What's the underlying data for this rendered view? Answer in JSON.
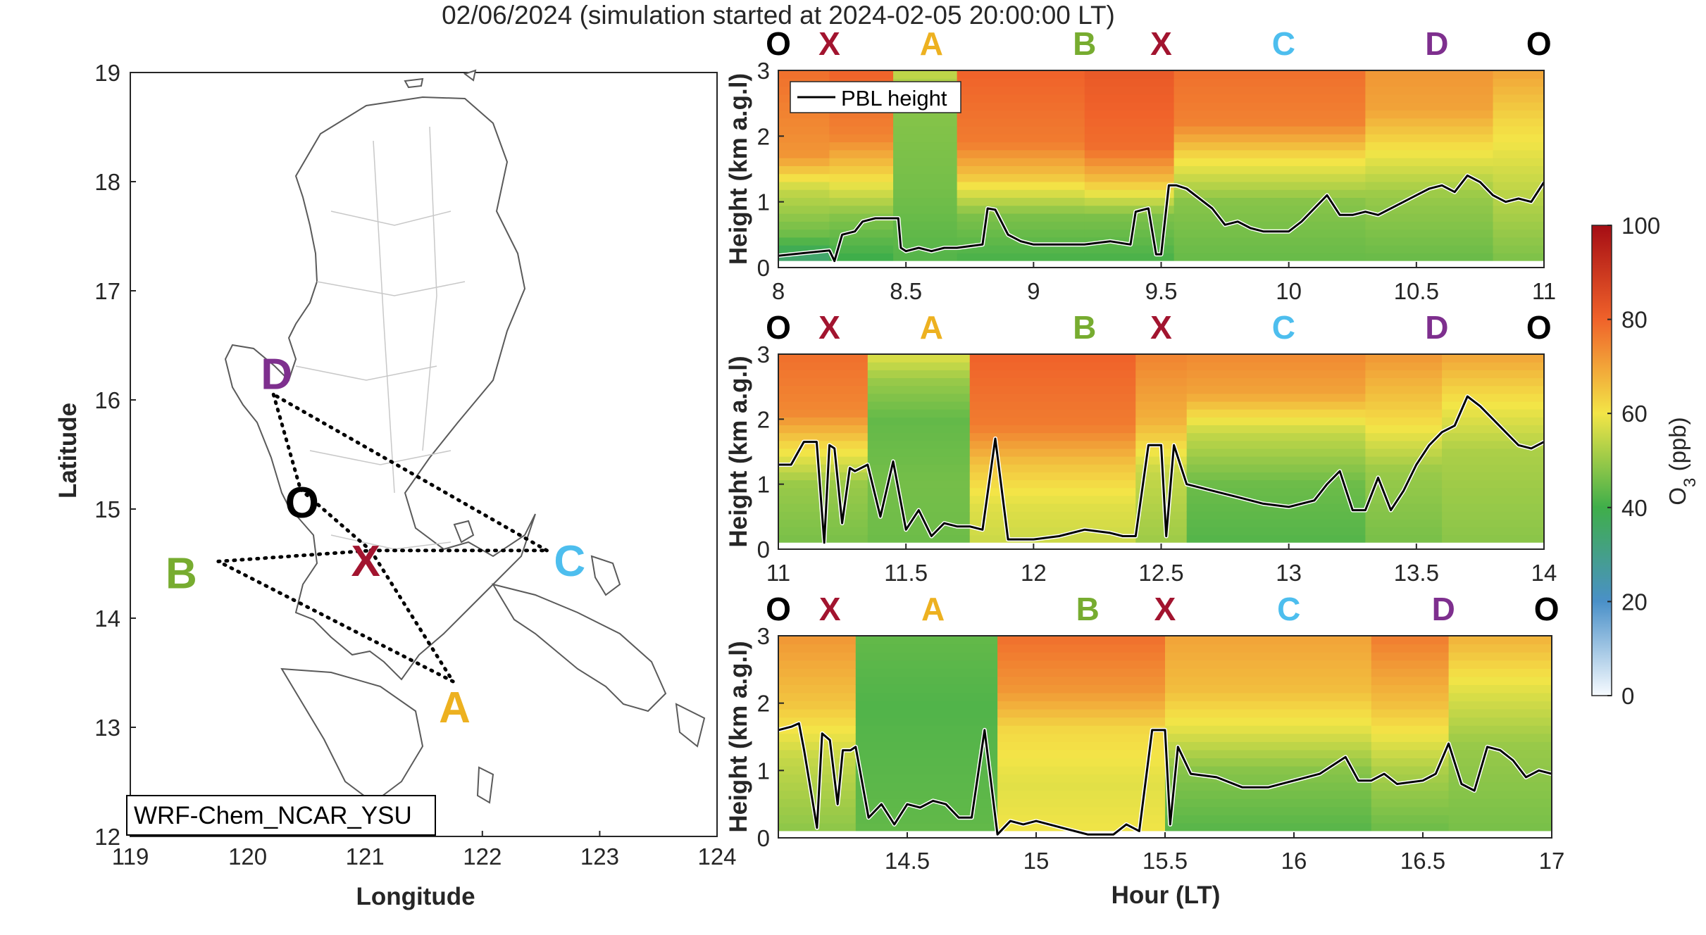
{
  "figure": {
    "title": "02/06/2024 (simulation started at 2024-02-05 20:00:00 LT)"
  },
  "colors": {
    "O": "#000000",
    "X": "#a2142f",
    "A": "#edb120",
    "B": "#77ac30",
    "C": "#4dbeee",
    "D": "#7e2f8e"
  },
  "chart_data": [
    {
      "type": "map",
      "xlabel": "Longitude",
      "ylabel": "Latitude",
      "xlim": [
        119,
        124
      ],
      "ylim": [
        12,
        19
      ],
      "xticks": [
        "119",
        "120",
        "121",
        "122",
        "123",
        "124"
      ],
      "yticks": [
        "12",
        "13",
        "14",
        "15",
        "16",
        "17",
        "18",
        "19"
      ],
      "label_box": "WRF-Chem_NCAR_YSU",
      "points": [
        {
          "name": "D",
          "lon": 120.22,
          "lat": 16.05
        },
        {
          "name": "O",
          "lon": 120.45,
          "lat": 15.18
        },
        {
          "name": "X",
          "lon": 121.05,
          "lat": 14.62
        },
        {
          "name": "C",
          "lon": 122.55,
          "lat": 14.62
        },
        {
          "name": "B",
          "lon": 119.75,
          "lat": 14.52
        },
        {
          "name": "A",
          "lon": 121.75,
          "lat": 13.42
        }
      ],
      "route": [
        [
          "D",
          "O"
        ],
        [
          "O",
          "X"
        ],
        [
          "X",
          "A"
        ],
        [
          "A",
          "B"
        ],
        [
          "B",
          "X"
        ],
        [
          "X",
          "C"
        ],
        [
          "C",
          "D"
        ]
      ]
    },
    {
      "type": "heatmap",
      "title": "",
      "xlabel": "",
      "ylabel": "Height (km a.g.l)",
      "xlim": [
        8,
        11
      ],
      "ylim": [
        0,
        3
      ],
      "xticks": [
        "8",
        "8.5",
        "9",
        "9.5",
        "10",
        "10.5",
        "11"
      ],
      "yticks": [
        "0",
        "1",
        "2",
        "3"
      ],
      "legend": [
        "PBL height"
      ],
      "legend_position": "top-left",
      "route_labels": [
        {
          "label": "O",
          "x": 8.0
        },
        {
          "label": "X",
          "x": 8.2
        },
        {
          "label": "A",
          "x": 8.6
        },
        {
          "label": "B",
          "x": 9.2
        },
        {
          "label": "X",
          "x": 9.5
        },
        {
          "label": "C",
          "x": 9.98
        },
        {
          "label": "D",
          "x": 10.58
        },
        {
          "label": "O",
          "x": 10.98
        }
      ],
      "pbl": {
        "x": [
          8.0,
          8.2,
          8.22,
          8.25,
          8.3,
          8.33,
          8.38,
          8.47,
          8.48,
          8.5,
          8.55,
          8.6,
          8.65,
          8.7,
          8.8,
          8.82,
          8.85,
          8.9,
          8.95,
          9.0,
          9.1,
          9.2,
          9.3,
          9.38,
          9.4,
          9.45,
          9.48,
          9.5,
          9.53,
          9.56,
          9.6,
          9.7,
          9.75,
          9.8,
          9.85,
          9.9,
          10.0,
          10.05,
          10.1,
          10.15,
          10.2,
          10.25,
          10.3,
          10.35,
          10.4,
          10.45,
          10.5,
          10.55,
          10.6,
          10.65,
          10.7,
          10.75,
          10.8,
          10.85,
          10.9,
          10.95,
          11.0
        ],
        "y": [
          0.18,
          0.26,
          0.1,
          0.5,
          0.55,
          0.7,
          0.75,
          0.75,
          0.3,
          0.25,
          0.3,
          0.25,
          0.3,
          0.3,
          0.35,
          0.9,
          0.88,
          0.5,
          0.4,
          0.35,
          0.35,
          0.35,
          0.4,
          0.35,
          0.85,
          0.9,
          0.2,
          0.2,
          1.25,
          1.25,
          1.2,
          0.9,
          0.65,
          0.7,
          0.6,
          0.55,
          0.55,
          0.7,
          0.9,
          1.1,
          0.8,
          0.8,
          0.85,
          0.8,
          0.9,
          1.0,
          1.1,
          1.2,
          1.25,
          1.15,
          1.4,
          1.3,
          1.1,
          1.0,
          1.05,
          1.0,
          1.3
        ]
      },
      "ozone_columns": [
        {
          "x0": 8.0,
          "x1": 8.2,
          "levels": [
            [
              0.0,
              30
            ],
            [
              0.5,
              45
            ],
            [
              1.2,
              55
            ],
            [
              1.7,
              72
            ],
            [
              3.0,
              78
            ]
          ]
        },
        {
          "x0": 8.2,
          "x1": 8.45,
          "levels": [
            [
              0.0,
              38
            ],
            [
              0.8,
              48
            ],
            [
              1.4,
              62
            ],
            [
              2.0,
              75
            ],
            [
              3.0,
              80
            ]
          ]
        },
        {
          "x0": 8.45,
          "x1": 8.7,
          "levels": [
            [
              0.0,
              42
            ],
            [
              1.2,
              46
            ],
            [
              2.5,
              48
            ],
            [
              3.0,
              55
            ]
          ]
        },
        {
          "x0": 8.7,
          "x1": 9.2,
          "levels": [
            [
              0.0,
              40
            ],
            [
              0.8,
              47
            ],
            [
              1.4,
              65
            ],
            [
              1.9,
              76
            ],
            [
              3.0,
              80
            ]
          ]
        },
        {
          "x0": 9.2,
          "x1": 9.55,
          "levels": [
            [
              0.0,
              40
            ],
            [
              0.8,
              47
            ],
            [
              1.3,
              65
            ],
            [
              1.8,
              78
            ],
            [
              3.0,
              82
            ]
          ]
        },
        {
          "x0": 9.55,
          "x1": 10.3,
          "levels": [
            [
              0.0,
              44
            ],
            [
              1.0,
              48
            ],
            [
              1.7,
              62
            ],
            [
              2.2,
              75
            ],
            [
              3.0,
              78
            ]
          ]
        },
        {
          "x0": 10.3,
          "x1": 10.8,
          "levels": [
            [
              0.0,
              44
            ],
            [
              1.1,
              50
            ],
            [
              1.9,
              62
            ],
            [
              2.4,
              70
            ],
            [
              3.0,
              72
            ]
          ]
        },
        {
          "x0": 10.8,
          "x1": 11.0,
          "levels": [
            [
              0.0,
              46
            ],
            [
              1.3,
              55
            ],
            [
              2.2,
              62
            ],
            [
              3.0,
              70
            ]
          ]
        }
      ]
    },
    {
      "type": "heatmap",
      "title": "",
      "xlabel": "",
      "ylabel": "Height (km a.g.l)",
      "xlim": [
        11,
        14
      ],
      "ylim": [
        0,
        3
      ],
      "xticks": [
        "11",
        "11.5",
        "12",
        "12.5",
        "13",
        "13.5",
        "14"
      ],
      "yticks": [
        "0",
        "1",
        "2",
        "3"
      ],
      "route_labels": [
        {
          "label": "O",
          "x": 11.0
        },
        {
          "label": "X",
          "x": 11.2
        },
        {
          "label": "A",
          "x": 11.6
        },
        {
          "label": "B",
          "x": 12.2
        },
        {
          "label": "X",
          "x": 12.5
        },
        {
          "label": "C",
          "x": 12.98
        },
        {
          "label": "D",
          "x": 13.58
        },
        {
          "label": "O",
          "x": 13.98
        }
      ],
      "pbl": {
        "x": [
          11.0,
          11.05,
          11.1,
          11.15,
          11.18,
          11.2,
          11.22,
          11.25,
          11.28,
          11.3,
          11.35,
          11.4,
          11.45,
          11.5,
          11.55,
          11.6,
          11.65,
          11.7,
          11.75,
          11.8,
          11.85,
          11.9,
          11.95,
          12.0,
          12.1,
          12.2,
          12.3,
          12.35,
          12.4,
          12.45,
          12.5,
          12.52,
          12.55,
          12.6,
          12.7,
          12.8,
          12.9,
          13.0,
          13.1,
          13.15,
          13.2,
          13.25,
          13.3,
          13.35,
          13.4,
          13.45,
          13.5,
          13.55,
          13.6,
          13.65,
          13.7,
          13.75,
          13.8,
          13.85,
          13.9,
          13.95,
          14.0
        ],
        "y": [
          1.3,
          1.3,
          1.65,
          1.65,
          0.1,
          1.6,
          1.55,
          0.4,
          1.25,
          1.2,
          1.3,
          0.5,
          1.35,
          0.3,
          0.6,
          0.2,
          0.4,
          0.35,
          0.35,
          0.3,
          1.7,
          0.15,
          0.15,
          0.15,
          0.2,
          0.3,
          0.25,
          0.2,
          0.2,
          1.6,
          1.6,
          0.2,
          1.6,
          1.0,
          0.9,
          0.8,
          0.7,
          0.65,
          0.75,
          1.0,
          1.2,
          0.6,
          0.6,
          1.1,
          0.6,
          0.9,
          1.3,
          1.6,
          1.8,
          1.9,
          2.35,
          2.2,
          2.0,
          1.8,
          1.6,
          1.55,
          1.65
        ]
      },
      "ozone_columns": [
        {
          "x0": 11.0,
          "x1": 11.35,
          "levels": [
            [
              0.0,
              46
            ],
            [
              1.0,
              50
            ],
            [
              1.6,
              62
            ],
            [
              2.1,
              74
            ],
            [
              3.0,
              78
            ]
          ]
        },
        {
          "x0": 11.35,
          "x1": 11.75,
          "levels": [
            [
              0.0,
              45
            ],
            [
              1.0,
              46
            ],
            [
              2.0,
              44
            ],
            [
              2.6,
              50
            ],
            [
              3.0,
              58
            ]
          ]
        },
        {
          "x0": 11.75,
          "x1": 12.4,
          "levels": [
            [
              0.0,
              55
            ],
            [
              0.7,
              58
            ],
            [
              1.3,
              65
            ],
            [
              1.9,
              76
            ],
            [
              3.0,
              80
            ]
          ]
        },
        {
          "x0": 12.4,
          "x1": 12.6,
          "levels": [
            [
              0.0,
              50
            ],
            [
              1.2,
              55
            ],
            [
              2.0,
              68
            ],
            [
              3.0,
              75
            ]
          ]
        },
        {
          "x0": 12.6,
          "x1": 13.3,
          "levels": [
            [
              0.0,
              42
            ],
            [
              1.0,
              45
            ],
            [
              1.8,
              55
            ],
            [
              2.4,
              70
            ],
            [
              3.0,
              74
            ]
          ]
        },
        {
          "x0": 13.3,
          "x1": 13.6,
          "levels": [
            [
              0.0,
              46
            ],
            [
              1.2,
              50
            ],
            [
              2.0,
              62
            ],
            [
              3.0,
              72
            ]
          ]
        },
        {
          "x0": 13.6,
          "x1": 14.0,
          "levels": [
            [
              0.0,
              48
            ],
            [
              1.5,
              52
            ],
            [
              2.4,
              62
            ],
            [
              3.0,
              70
            ]
          ]
        }
      ]
    },
    {
      "type": "heatmap",
      "title": "",
      "xlabel": "Hour (LT)",
      "ylabel": "Height (km a.g.l)",
      "xlim": [
        14,
        17
      ],
      "ylim": [
        0,
        3
      ],
      "xticks": [
        "14.5",
        "15",
        "15.5",
        "16",
        "16.5",
        "17"
      ],
      "xtick_values": [
        14.5,
        15,
        15.5,
        16,
        16.5,
        17
      ],
      "yticks": [
        "0",
        "1",
        "2",
        "3"
      ],
      "route_labels": [
        {
          "label": "O",
          "x": 14.0
        },
        {
          "label": "X",
          "x": 14.2
        },
        {
          "label": "A",
          "x": 14.6
        },
        {
          "label": "B",
          "x": 15.2
        },
        {
          "label": "X",
          "x": 15.5
        },
        {
          "label": "C",
          "x": 15.98
        },
        {
          "label": "D",
          "x": 16.58
        },
        {
          "label": "O",
          "x": 16.98
        }
      ],
      "pbl": {
        "x": [
          14.0,
          14.05,
          14.08,
          14.1,
          14.15,
          14.17,
          14.2,
          14.23,
          14.25,
          14.28,
          14.3,
          14.35,
          14.4,
          14.45,
          14.5,
          14.55,
          14.6,
          14.65,
          14.7,
          14.75,
          14.8,
          14.85,
          14.9,
          14.95,
          15.0,
          15.1,
          15.2,
          15.3,
          15.35,
          15.4,
          15.45,
          15.5,
          15.52,
          15.55,
          15.6,
          15.7,
          15.8,
          15.9,
          16.0,
          16.1,
          16.2,
          16.25,
          16.3,
          16.35,
          16.4,
          16.5,
          16.55,
          16.6,
          16.65,
          16.7,
          16.75,
          16.8,
          16.85,
          16.9,
          16.95,
          17.0
        ],
        "y": [
          1.6,
          1.65,
          1.7,
          1.3,
          0.15,
          1.55,
          1.45,
          0.5,
          1.3,
          1.3,
          1.35,
          0.3,
          0.5,
          0.2,
          0.5,
          0.45,
          0.55,
          0.5,
          0.3,
          0.3,
          1.6,
          0.05,
          0.25,
          0.2,
          0.25,
          0.15,
          0.05,
          0.05,
          0.2,
          0.1,
          1.6,
          1.6,
          0.2,
          1.35,
          0.95,
          0.9,
          0.75,
          0.75,
          0.85,
          0.95,
          1.2,
          0.85,
          0.85,
          0.95,
          0.8,
          0.85,
          0.95,
          1.4,
          0.8,
          0.7,
          1.35,
          1.3,
          1.15,
          0.9,
          1.0,
          0.95
        ]
      },
      "ozone_columns": [
        {
          "x0": 14.0,
          "x1": 14.3,
          "levels": [
            [
              0.0,
              48
            ],
            [
              1.2,
              55
            ],
            [
              2.0,
              65
            ],
            [
              3.0,
              72
            ]
          ]
        },
        {
          "x0": 14.3,
          "x1": 14.85,
          "levels": [
            [
              0.0,
              44
            ],
            [
              1.0,
              43
            ],
            [
              2.0,
              42
            ],
            [
              3.0,
              44
            ]
          ]
        },
        {
          "x0": 14.85,
          "x1": 15.5,
          "levels": [
            [
              0.0,
              60
            ],
            [
              0.8,
              58
            ],
            [
              1.6,
              62
            ],
            [
              2.2,
              72
            ],
            [
              3.0,
              78
            ]
          ]
        },
        {
          "x0": 15.5,
          "x1": 16.3,
          "levels": [
            [
              0.0,
              42
            ],
            [
              1.0,
              48
            ],
            [
              1.6,
              58
            ],
            [
              2.2,
              66
            ],
            [
              3.0,
              70
            ]
          ]
        },
        {
          "x0": 16.3,
          "x1": 16.6,
          "levels": [
            [
              0.0,
              44
            ],
            [
              1.0,
              52
            ],
            [
              2.0,
              66
            ],
            [
              3.0,
              76
            ]
          ]
        },
        {
          "x0": 16.6,
          "x1": 17.0,
          "levels": [
            [
              0.0,
              46
            ],
            [
              1.4,
              50
            ],
            [
              2.2,
              58
            ],
            [
              3.0,
              68
            ]
          ]
        }
      ]
    },
    {
      "type": "colorbar",
      "label": "O",
      "label_sub": "3",
      "label_unit": " (ppb)",
      "range": [
        0,
        100
      ],
      "ticks": [
        "0",
        "20",
        "40",
        "60",
        "80",
        "100"
      ]
    }
  ]
}
